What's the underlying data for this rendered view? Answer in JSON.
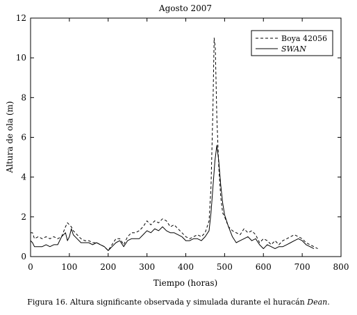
{
  "chart_data": {
    "type": "line",
    "title": "Agosto 2007",
    "xlabel": "Tiempo (horas)",
    "ylabel": "Altura de ola (m)",
    "xlim": [
      0,
      800
    ],
    "ylim": [
      0,
      12
    ],
    "xticks": [
      0,
      100,
      200,
      300,
      400,
      500,
      600,
      700,
      800
    ],
    "yticks": [
      0,
      2,
      4,
      6,
      8,
      10,
      12
    ],
    "grid": false,
    "legend": "top-right",
    "series": [
      {
        "name": "Boya 42056",
        "style": "dashed",
        "x": [
          0,
          5,
          10,
          20,
          30,
          40,
          50,
          60,
          70,
          80,
          90,
          95,
          100,
          105,
          110,
          120,
          130,
          140,
          150,
          160,
          170,
          180,
          190,
          200,
          210,
          220,
          230,
          240,
          250,
          260,
          270,
          280,
          290,
          300,
          310,
          320,
          330,
          340,
          350,
          360,
          370,
          380,
          390,
          400,
          410,
          420,
          430,
          440,
          450,
          460,
          465,
          470,
          473,
          476,
          480,
          485,
          490,
          495,
          500,
          510,
          520,
          530,
          540,
          550,
          560,
          570,
          580,
          590,
          600,
          610,
          620,
          630,
          640,
          650,
          660,
          670,
          680,
          690,
          700,
          710,
          720,
          730,
          740
        ],
        "values": [
          1.2,
          1.2,
          0.9,
          1.0,
          0.9,
          1.0,
          0.9,
          1.0,
          0.9,
          1.0,
          1.5,
          1.7,
          1.6,
          1.5,
          1.3,
          1.1,
          0.9,
          0.8,
          0.8,
          0.7,
          0.7,
          0.6,
          0.5,
          0.3,
          0.6,
          0.9,
          0.9,
          0.6,
          1.0,
          1.2,
          1.2,
          1.3,
          1.5,
          1.8,
          1.6,
          1.8,
          1.7,
          1.9,
          1.8,
          1.5,
          1.6,
          1.4,
          1.2,
          1.0,
          0.9,
          1.0,
          1.1,
          1.0,
          1.2,
          1.8,
          3.5,
          7.5,
          11.0,
          10.5,
          7.0,
          4.5,
          3.0,
          2.2,
          2.0,
          1.5,
          1.3,
          1.2,
          1.1,
          1.4,
          1.2,
          1.3,
          1.1,
          0.7,
          0.9,
          0.8,
          0.6,
          0.8,
          0.6,
          0.8,
          0.9,
          1.0,
          1.1,
          1.0,
          0.9,
          0.7,
          0.6,
          0.5,
          0.4
        ]
      },
      {
        "name": "SWAN",
        "style": "solid",
        "x": [
          0,
          5,
          10,
          20,
          30,
          40,
          50,
          60,
          70,
          80,
          90,
          95,
          100,
          105,
          110,
          120,
          130,
          140,
          150,
          160,
          170,
          180,
          190,
          200,
          210,
          220,
          230,
          240,
          250,
          260,
          270,
          280,
          290,
          300,
          310,
          320,
          330,
          340,
          350,
          360,
          370,
          380,
          390,
          400,
          410,
          420,
          430,
          440,
          450,
          460,
          465,
          470,
          475,
          480,
          485,
          490,
          495,
          500,
          510,
          520,
          530,
          540,
          550,
          560,
          570,
          580,
          590,
          600,
          610,
          620,
          630,
          640,
          650,
          660,
          670,
          680,
          690,
          700,
          710,
          720,
          730
        ],
        "values": [
          0.8,
          0.7,
          0.5,
          0.5,
          0.5,
          0.6,
          0.5,
          0.6,
          0.6,
          1.0,
          1.2,
          0.8,
          1.0,
          1.4,
          1.1,
          0.9,
          0.7,
          0.7,
          0.7,
          0.6,
          0.7,
          0.6,
          0.5,
          0.3,
          0.5,
          0.7,
          0.8,
          0.5,
          0.8,
          0.9,
          0.9,
          0.9,
          1.1,
          1.3,
          1.2,
          1.4,
          1.3,
          1.5,
          1.3,
          1.2,
          1.2,
          1.1,
          1.0,
          0.8,
          0.8,
          0.9,
          0.9,
          0.8,
          1.0,
          1.3,
          2.2,
          3.5,
          4.8,
          5.6,
          4.8,
          3.6,
          2.7,
          2.1,
          1.5,
          1.0,
          0.7,
          0.8,
          0.9,
          1.0,
          0.8,
          0.9,
          0.6,
          0.4,
          0.6,
          0.5,
          0.4,
          0.5,
          0.5,
          0.6,
          0.7,
          0.8,
          0.9,
          0.8,
          0.6,
          0.5,
          0.4
        ]
      }
    ]
  },
  "caption": {
    "prefix": "Figura 16. Altura significante observada y simulada durante el huracán ",
    "name": "Dean",
    "suffix": "."
  }
}
